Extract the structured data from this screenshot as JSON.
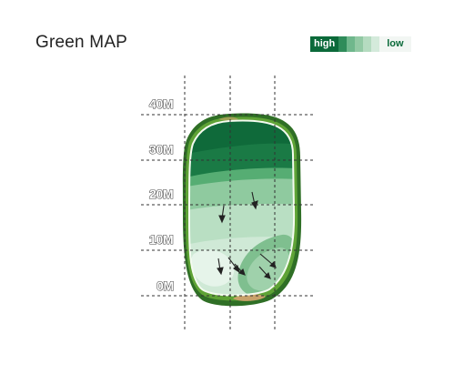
{
  "header": {
    "title": "Green MAP"
  },
  "legend": {
    "high_label": "high",
    "low_label": "low",
    "swatches": [
      "#2f8c5a",
      "#6fb78c",
      "#92c9a4",
      "#b5dbc0",
      "#d4eadb"
    ],
    "high_color": "#0b6a3a"
  },
  "green_map": {
    "distance_marks": [
      "40M",
      "30M",
      "20M",
      "10M",
      "0M"
    ],
    "slope_arrow_count": 7,
    "colors": {
      "fringe_dark": "#2f6f26",
      "fringe_light": "#5fa336",
      "slope_high": "#1a7a45",
      "slope_mid": "#56ad73",
      "slope_low": "#a6d5b2",
      "slope_lowest": "#d2ecd9",
      "sand": "#c9a26a"
    }
  }
}
